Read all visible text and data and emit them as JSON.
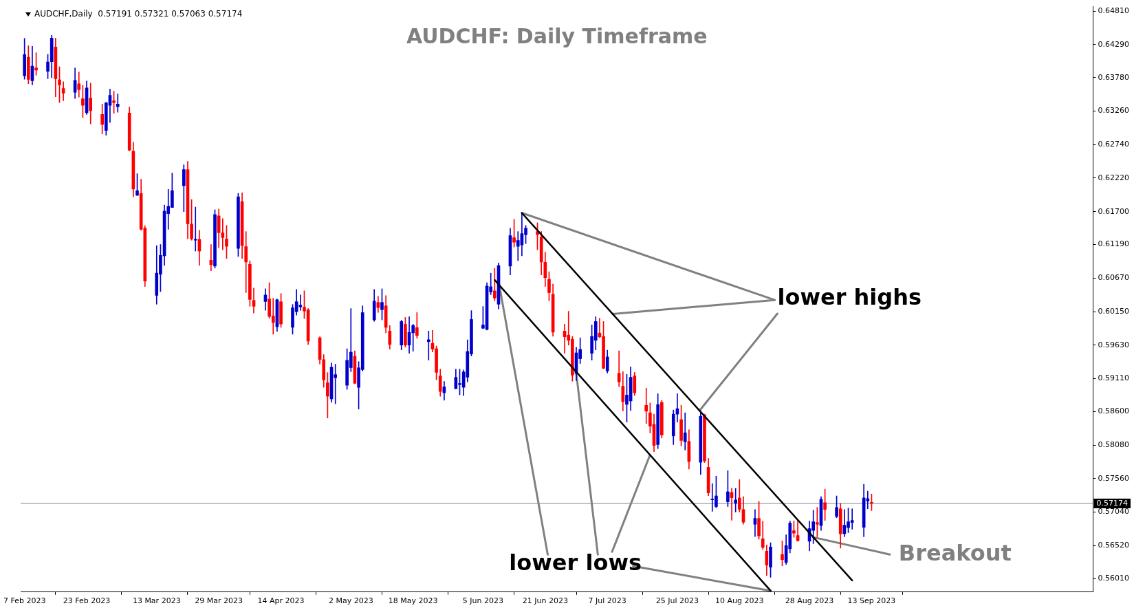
{
  "chart_data": {
    "type": "candlestick",
    "title": "AUDCHF: Daily Timeframe",
    "x": [
      "2023-02-07",
      "2023-02-08",
      "2023-02-09",
      "2023-02-10",
      "2023-02-13",
      "2023-02-14",
      "2023-02-15",
      "2023-02-16",
      "2023-02-17",
      "2023-02-20",
      "2023-02-21",
      "2023-02-22",
      "2023-02-23",
      "2023-02-24",
      "2023-02-27",
      "2023-02-28",
      "2023-03-01",
      "2023-03-02",
      "2023-03-03",
      "2023-03-06",
      "2023-03-07",
      "2023-03-08",
      "2023-03-09",
      "2023-03-10",
      "2023-03-13",
      "2023-03-14",
      "2023-03-15",
      "2023-03-16",
      "2023-03-17",
      "2023-03-20",
      "2023-03-21",
      "2023-03-22",
      "2023-03-23",
      "2023-03-24",
      "2023-03-27",
      "2023-03-28",
      "2023-03-29",
      "2023-03-30",
      "2023-03-31",
      "2023-04-03",
      "2023-04-04",
      "2023-04-05",
      "2023-04-06",
      "2023-04-07",
      "2023-04-10",
      "2023-04-11",
      "2023-04-12",
      "2023-04-13",
      "2023-04-14",
      "2023-04-17",
      "2023-04-18",
      "2023-04-19",
      "2023-04-20",
      "2023-04-21",
      "2023-04-24",
      "2023-04-25",
      "2023-04-26",
      "2023-04-27",
      "2023-04-28",
      "2023-05-01",
      "2023-05-02",
      "2023-05-03",
      "2023-05-04",
      "2023-05-05",
      "2023-05-08",
      "2023-05-09",
      "2023-05-10",
      "2023-05-11",
      "2023-05-12",
      "2023-05-15",
      "2023-05-16",
      "2023-05-17",
      "2023-05-18",
      "2023-05-19",
      "2023-05-22",
      "2023-05-23",
      "2023-05-24",
      "2023-05-25",
      "2023-05-26",
      "2023-05-29",
      "2023-05-30",
      "2023-05-31",
      "2023-06-01",
      "2023-06-02",
      "2023-06-05",
      "2023-06-06",
      "2023-06-07",
      "2023-06-08",
      "2023-06-09",
      "2023-06-12",
      "2023-06-13",
      "2023-06-14",
      "2023-06-15",
      "2023-06-16",
      "2023-06-19",
      "2023-06-20",
      "2023-06-21",
      "2023-06-22",
      "2023-06-23",
      "2023-06-26",
      "2023-06-27",
      "2023-06-28",
      "2023-06-29",
      "2023-06-30",
      "2023-07-03",
      "2023-07-04",
      "2023-07-05",
      "2023-07-06",
      "2023-07-07",
      "2023-07-10",
      "2023-07-11",
      "2023-07-12",
      "2023-07-13",
      "2023-07-14",
      "2023-07-17",
      "2023-07-18",
      "2023-07-19",
      "2023-07-20",
      "2023-07-21",
      "2023-07-24",
      "2023-07-25",
      "2023-07-26",
      "2023-07-27",
      "2023-07-28",
      "2023-07-31",
      "2023-08-01",
      "2023-08-02",
      "2023-08-03",
      "2023-08-04",
      "2023-08-07",
      "2023-08-08",
      "2023-08-09",
      "2023-08-10",
      "2023-08-11",
      "2023-08-14",
      "2023-08-15",
      "2023-08-16",
      "2023-08-17",
      "2023-08-18",
      "2023-08-21",
      "2023-08-22",
      "2023-08-23",
      "2023-08-24",
      "2023-08-25",
      "2023-08-28",
      "2023-08-29",
      "2023-08-30",
      "2023-08-31",
      "2023-09-01",
      "2023-09-04",
      "2023-09-05",
      "2023-09-06",
      "2023-09-07",
      "2023-09-08",
      "2023-09-11",
      "2023-09-12",
      "2023-09-13"
    ],
    "ohlc": [
      [
        0.63807,
        0.64388,
        0.63754,
        0.64135
      ],
      [
        0.64096,
        0.64272,
        0.63684,
        0.63751
      ],
      [
        0.6373,
        0.64265,
        0.63666,
        0.63958
      ],
      [
        0.63927,
        0.64166,
        0.63814,
        0.63895
      ],
      [
        0.63877,
        0.64138,
        0.63761,
        0.64022
      ],
      [
        0.64025,
        0.64434,
        0.63779,
        0.64392
      ],
      [
        0.64254,
        0.64392,
        0.63483,
        0.63761
      ],
      [
        0.63744,
        0.63948,
        0.63391,
        0.63666
      ],
      [
        0.6361,
        0.63715,
        0.6342,
        0.63539
      ],
      [
        0.6355,
        0.63927,
        0.63455,
        0.63737
      ],
      [
        0.63684,
        0.63863,
        0.63476,
        0.63592
      ],
      [
        0.63451,
        0.63659,
        0.63159,
        0.63349
      ],
      [
        0.63233,
        0.63726,
        0.63208,
        0.6362
      ],
      [
        0.63462,
        0.63694,
        0.6306,
        0.63265
      ],
      [
        0.63208,
        0.63367,
        0.62905,
        0.63053
      ],
      [
        0.62958,
        0.63398,
        0.62884,
        0.63388
      ],
      [
        0.63349,
        0.63599,
        0.63081,
        0.63504
      ],
      [
        0.6342,
        0.63568,
        0.63222,
        0.63391
      ],
      [
        0.63328,
        0.63525,
        0.63243,
        0.63367
      ],
      [
        0.63229,
        0.63324,
        0.62645,
        0.62652
      ],
      [
        0.62638,
        0.62775,
        0.61933,
        0.6205
      ],
      [
        0.61954,
        0.62289,
        0.61947,
        0.62025
      ],
      [
        0.61983,
        0.62204,
        0.61412,
        0.61426
      ],
      [
        0.61444,
        0.61482,
        0.60539,
        0.60623
      ],
      [
        0.60401,
        0.61173,
        0.60264,
        0.60746
      ],
      [
        0.60729,
        0.6119,
        0.60461,
        0.61021
      ],
      [
        0.61014,
        0.61803,
        0.60866,
        0.61708
      ],
      [
        0.61669,
        0.62046,
        0.61426,
        0.61782
      ],
      [
        0.61764,
        0.623,
        0.61764,
        0.62025
      ],
      [
        0.62102,
        0.62426,
        0.61701,
        0.62352
      ],
      [
        0.62352,
        0.62479,
        0.61278,
        0.61511
      ],
      [
        0.61507,
        0.61888,
        0.61257,
        0.61278
      ],
      [
        0.61257,
        0.61771,
        0.61088,
        0.61271
      ],
      [
        0.61271,
        0.61412,
        0.60866,
        0.61088
      ],
      [
        0.60947,
        0.6119,
        0.60782,
        0.60877
      ],
      [
        0.60856,
        0.61729,
        0.60824,
        0.61655
      ],
      [
        0.61634,
        0.6174,
        0.61141,
        0.61373
      ],
      [
        0.6137,
        0.61592,
        0.61109,
        0.61299
      ],
      [
        0.61275,
        0.61486,
        0.60972,
        0.61162
      ],
      [
        0.6113,
        0.61983,
        0.61004,
        0.6193
      ],
      [
        0.61856,
        0.61993,
        0.60972,
        0.61173
      ],
      [
        0.61158,
        0.61391,
        0.60444,
        0.60919
      ],
      [
        0.60884,
        0.60937,
        0.60232,
        0.60338
      ],
      [
        0.60324,
        0.60514,
        0.60127,
        0.60232
      ],
      [
        0.60306,
        0.60503,
        0.60169,
        0.60408
      ],
      [
        0.60345,
        0.60598,
        0.60046,
        0.60074
      ],
      [
        0.60081,
        0.60355,
        0.59799,
        0.59979
      ],
      [
        0.59915,
        0.60345,
        0.59841,
        0.60334
      ],
      [
        0.60303,
        0.60429,
        0.59905,
        0.59957
      ],
      [
        0.59905,
        0.6026,
        0.59799,
        0.60208
      ],
      [
        0.60148,
        0.60493,
        0.60095,
        0.60303
      ],
      [
        0.60222,
        0.60408,
        0.60169,
        0.6025
      ],
      [
        0.60218,
        0.60472,
        0.60042,
        0.60158
      ],
      [
        0.60176,
        0.60197,
        0.5964,
        0.59693
      ],
      [
        0.59743,
        0.5976,
        0.59334,
        0.59408
      ],
      [
        0.59404,
        0.59482,
        0.58975,
        0.59091
      ],
      [
        0.59045,
        0.59204,
        0.58499,
        0.58837
      ],
      [
        0.58795,
        0.59352,
        0.58742,
        0.59288
      ],
      [
        0.59123,
        0.59334,
        0.58721,
        0.59172
      ],
      [
        0.59007,
        0.59574,
        0.58943,
        0.59394
      ],
      [
        0.59281,
        0.60197,
        0.59218,
        0.59521
      ],
      [
        0.59457,
        0.59542,
        0.59028,
        0.59038
      ],
      [
        0.58975,
        0.59373,
        0.58637,
        0.59278
      ],
      [
        0.5925,
        0.60239,
        0.59228,
        0.60134
      ],
      [
        0.60021,
        0.60493,
        0.59999,
        0.60313
      ],
      [
        0.60292,
        0.60387,
        0.60137,
        0.60211
      ],
      [
        0.60179,
        0.60503,
        0.60021,
        0.60292
      ],
      [
        0.60239,
        0.60398,
        0.5982,
        0.59905
      ],
      [
        0.59848,
        0.59933,
        0.59567,
        0.5964
      ],
      [
        0.5963,
        0.60017,
        0.59556,
        0.59996
      ],
      [
        0.59954,
        0.6006,
        0.59598,
        0.5963
      ],
      [
        0.5963,
        0.6007,
        0.59503,
        0.59827
      ],
      [
        0.5982,
        0.59954,
        0.59535,
        0.59933
      ],
      [
        0.59901,
        0.60134,
        0.59736,
        0.59778
      ],
      [
        0.59683,
        0.59848,
        0.59397,
        0.59714
      ],
      [
        0.59658,
        0.59859,
        0.59524,
        0.59567
      ],
      [
        0.59574,
        0.59616,
        0.59091,
        0.59207
      ],
      [
        0.59151,
        0.59257,
        0.58837,
        0.58911
      ],
      [
        0.5889,
        0.59066,
        0.58774,
        0.58982
      ],
      [
        0.58954,
        0.59257,
        0.5895,
        0.5913
      ],
      [
        0.59017,
        0.59257,
        0.58859,
        0.59035
      ],
      [
        0.58975,
        0.59246,
        0.58848,
        0.59214
      ],
      [
        0.59133,
        0.59711,
        0.59059,
        0.59531
      ],
      [
        0.59493,
        0.60165,
        0.59461,
        0.60028
      ],
      [
        0.59891,
        0.60229,
        0.59884,
        0.59943
      ],
      [
        0.59873,
        0.60598,
        0.59862,
        0.60546
      ],
      [
        0.60454,
        0.60746,
        0.60412,
        0.60535
      ],
      [
        0.60472,
        0.6082,
        0.60317,
        0.60359
      ],
      [
        0.60264,
        0.60905,
        0.6019,
        0.60863
      ],
      [
        0.60856,
        0.61444,
        0.60718,
        0.61328
      ],
      [
        0.61296,
        0.61581,
        0.61151,
        0.61225
      ],
      [
        0.61162,
        0.61391,
        0.6094,
        0.61254
      ],
      [
        0.61183,
        0.61676,
        0.61014,
        0.61359
      ],
      [
        0.61342,
        0.61486,
        0.61204,
        0.61444
      ],
      [
        0.61391,
        0.61528,
        0.61109,
        0.61342
      ],
      [
        0.61306,
        0.61391,
        0.60718,
        0.60919
      ],
      [
        0.60915,
        0.61074,
        0.60539,
        0.60676
      ],
      [
        0.60651,
        0.60768,
        0.60317,
        0.60443
      ],
      [
        0.60419,
        0.60577,
        0.59767,
        0.59831
      ],
      [
        0.59848,
        0.59954,
        0.59503,
        0.59757
      ],
      [
        0.59785,
        0.60155,
        0.5963,
        0.59704
      ],
      [
        0.59721,
        0.59764,
        0.5907,
        0.59165
      ],
      [
        0.5919,
        0.59595,
        0.5908,
        0.5951
      ],
      [
        0.59419,
        0.59743,
        0.59345,
        0.59563
      ],
      [
        0.59503,
        0.59943,
        0.59397,
        0.59764
      ],
      [
        0.59704,
        0.6007,
        0.59556,
        0.59996
      ],
      [
        0.59817,
        0.60049,
        0.59746,
        0.59757
      ],
      [
        0.59764,
        0.59996,
        0.5926,
        0.59271
      ],
      [
        0.59228,
        0.59552,
        0.59197,
        0.59447
      ],
      [
        0.59193,
        0.59542,
        0.58985,
        0.59059
      ],
      [
        0.58992,
        0.59218,
        0.58609,
        0.58753
      ],
      [
        0.58711,
        0.59176,
        0.58436,
        0.58855
      ],
      [
        0.58764,
        0.59292,
        0.58616,
        0.5913
      ],
      [
        0.59151,
        0.59207,
        0.58848,
        0.5889
      ],
      [
        0.58697,
        0.58964,
        0.58415,
        0.58605
      ],
      [
        0.5858,
        0.58732,
        0.58267,
        0.58373
      ],
      [
        0.58401,
        0.58559,
        0.57978,
        0.58073
      ],
      [
        0.58087,
        0.58876,
        0.58024,
        0.58707
      ],
      [
        0.58742,
        0.58771,
        0.58189,
        0.58235
      ],
      [
        0.58221,
        0.58623,
        0.58087,
        0.58559
      ],
      [
        0.58559,
        0.58876,
        0.58436,
        0.58644
      ],
      [
        0.58475,
        0.58697,
        0.58066,
        0.58151
      ],
      [
        0.5813,
        0.5858,
        0.58003,
        0.5827
      ],
      [
        0.58137,
        0.58316,
        0.57707,
        0.57823
      ],
      [
        0.57813,
        0.58601,
        0.57622,
        0.58527
      ],
      [
        0.58549,
        0.58559,
        0.57809,
        0.57834
      ],
      [
        0.57735,
        0.57872,
        0.57295,
        0.57337
      ],
      [
        0.57231,
        0.57481,
        0.57052,
        0.57238
      ],
      [
        0.57126,
        0.57598,
        0.57105,
        0.57291
      ],
      [
        0.572,
        0.57682,
        0.57126,
        0.57355
      ],
      [
        0.57344,
        0.57411,
        0.56914,
        0.57263
      ],
      [
        0.57178,
        0.57407,
        0.57041,
        0.57228
      ],
      [
        0.5726,
        0.57545,
        0.57041,
        0.57083
      ],
      [
        0.5708,
        0.57281,
        0.56851,
        0.56883
      ],
      [
        0.56851,
        0.5708,
        0.56661,
        0.56943
      ],
      [
        0.56943,
        0.57207,
        0.56619,
        0.56671
      ],
      [
        0.56626,
        0.569,
        0.5646,
        0.56492
      ],
      [
        0.56435,
        0.56531,
        0.56058,
        0.56217
      ],
      [
        0.56185,
        0.56566,
        0.56027,
        0.56499
      ],
      [
        0.56383,
        0.56594,
        0.56206,
        0.56302
      ],
      [
        0.56259,
        0.56689,
        0.56228,
        0.5652
      ],
      [
        0.56471,
        0.569,
        0.56407,
        0.56869
      ],
      [
        0.56752,
        0.569,
        0.5665,
        0.56714
      ],
      [
        0.56678,
        0.569,
        0.56587,
        0.56597
      ],
      [
        0.56587,
        0.569,
        0.56439,
        0.56784
      ],
      [
        0.56756,
        0.57069,
        0.56552,
        0.5689
      ],
      [
        0.56879,
        0.57112,
        0.56657,
        0.56851
      ],
      [
        0.5683,
        0.57281,
        0.56756,
        0.57238
      ],
      [
        0.57186,
        0.57397,
        0.56911,
        0.5708
      ],
      [
        0.56974,
        0.57291,
        0.56953,
        0.57112
      ],
      [
        0.57091,
        0.57175,
        0.56481,
        0.56703
      ],
      [
        0.56703,
        0.5708,
        0.56657,
        0.56837
      ],
      [
        0.56798,
        0.57101,
        0.56721,
        0.5689
      ],
      [
        0.56879,
        0.57091,
        0.56774,
        0.56911
      ],
      [
        0.56805,
        0.57471,
        0.56657,
        0.5726
      ],
      [
        0.5721,
        0.57365,
        0.57091,
        0.57249
      ],
      [
        0.57191,
        0.57321,
        0.57063,
        0.57174
      ]
    ],
    "colors": [
      "#0000cc",
      "#ff0000",
      "#0000cc",
      "#ff0000",
      "#0000cc",
      "#0000cc",
      "#ff0000",
      "#ff0000",
      "#ff0000",
      "#0000cc",
      "#ff0000",
      "#ff0000",
      "#0000cc",
      "#ff0000",
      "#ff0000",
      "#0000cc",
      "#0000cc",
      "#ff0000",
      "#0000cc",
      "#ff0000",
      "#ff0000",
      "#0000cc",
      "#ff0000",
      "#ff0000",
      "#0000cc",
      "#0000cc",
      "#0000cc",
      "#0000cc",
      "#0000cc",
      "#0000cc",
      "#ff0000",
      "#ff0000",
      "#0000cc",
      "#ff0000",
      "#ff0000",
      "#0000cc",
      "#ff0000",
      "#ff0000",
      "#ff0000",
      "#0000cc",
      "#ff0000",
      "#ff0000",
      "#ff0000",
      "#ff0000",
      "#0000cc",
      "#ff0000",
      "#ff0000",
      "#0000cc",
      "#ff0000",
      "#0000cc",
      "#0000cc",
      "#0000cc",
      "#ff0000",
      "#ff0000",
      "#ff0000",
      "#ff0000",
      "#ff0000",
      "#0000cc",
      "#0000cc",
      "#0000cc",
      "#0000cc",
      "#ff0000",
      "#0000cc",
      "#0000cc",
      "#0000cc",
      "#ff0000",
      "#0000cc",
      "#ff0000",
      "#ff0000",
      "#0000cc",
      "#ff0000",
      "#0000cc",
      "#0000cc",
      "#ff0000",
      "#0000cc",
      "#ff0000",
      "#ff0000",
      "#ff0000",
      "#0000cc",
      "#0000cc",
      "#0000cc",
      "#0000cc",
      "#0000cc",
      "#0000cc",
      "#0000cc",
      "#0000cc",
      "#0000cc",
      "#ff0000",
      "#0000cc",
      "#0000cc",
      "#ff0000",
      "#0000cc",
      "#0000cc",
      "#0000cc",
      "#ff0000",
      "#ff0000",
      "#ff0000",
      "#ff0000",
      "#ff0000",
      "#ff0000",
      "#ff0000",
      "#ff0000",
      "#0000cc",
      "#0000cc",
      "#0000cc",
      "#0000cc",
      "#ff0000",
      "#ff0000",
      "#0000cc",
      "#ff0000",
      "#ff0000",
      "#0000cc",
      "#0000cc",
      "#ff0000",
      "#ff0000",
      "#ff0000",
      "#ff0000",
      "#0000cc",
      "#ff0000",
      "#0000cc",
      "#0000cc",
      "#ff0000",
      "#0000cc",
      "#ff0000",
      "#0000cc",
      "#ff0000",
      "#ff0000",
      "#0000cc",
      "#0000cc",
      "#0000cc",
      "#ff0000",
      "#0000cc",
      "#ff0000",
      "#ff0000",
      "#0000cc",
      "#ff0000",
      "#ff0000",
      "#ff0000",
      "#0000cc",
      "#ff0000",
      "#0000cc",
      "#0000cc",
      "#ff0000",
      "#ff0000",
      "#0000cc",
      "#0000cc",
      "#ff0000",
      "#0000cc",
      "#ff0000",
      "#0000cc",
      "#ff0000",
      "#0000cc",
      "#0000cc",
      "#0000cc",
      "#0000cc",
      "#0000cc",
      "#ff0000"
    ],
    "xlim": [
      "2023-02-06",
      "2023-11-09"
    ],
    "xticks": [
      {
        "value": "2023-02-07",
        "label": "7 Feb 2023"
      },
      {
        "value": "2023-02-23",
        "label": "23 Feb 2023"
      },
      {
        "value": "2023-03-13",
        "label": "13 Mar 2023"
      },
      {
        "value": "2023-03-29",
        "label": "29 Mar 2023"
      },
      {
        "value": "2023-04-14",
        "label": "14 Apr 2023"
      },
      {
        "value": "2023-05-02",
        "label": "2 May 2023"
      },
      {
        "value": "2023-05-18",
        "label": "18 May 2023"
      },
      {
        "value": "2023-06-05",
        "label": "5 Jun 2023"
      },
      {
        "value": "2023-06-21",
        "label": "21 Jun 2023"
      },
      {
        "value": "2023-07-07",
        "label": "7 Jul 2023"
      },
      {
        "value": "2023-07-25",
        "label": "25 Jul 2023"
      },
      {
        "value": "2023-08-10",
        "label": "10 Aug 2023"
      },
      {
        "value": "2023-08-28",
        "label": "28 Aug 2023"
      },
      {
        "value": "2023-09-13",
        "label": "13 Sep 2023"
      }
    ],
    "ylim": [
      0.558,
      0.6488
    ],
    "yticks": [
      {
        "value": 0.5601,
        "label": "0.56010"
      },
      {
        "value": 0.5652,
        "label": "0.56520"
      },
      {
        "value": 0.5704,
        "label": "0.57040"
      },
      {
        "value": 0.5756,
        "label": "0.57560"
      },
      {
        "value": 0.5808,
        "label": "0.58080"
      },
      {
        "value": 0.586,
        "label": "0.58600"
      },
      {
        "value": 0.5911,
        "label": "0.59110"
      },
      {
        "value": 0.5963,
        "label": "0.59630"
      },
      {
        "value": 0.6015,
        "label": "0.60150"
      },
      {
        "value": 0.6067,
        "label": "0.60670"
      },
      {
        "value": 0.6119,
        "label": "0.61190"
      },
      {
        "value": 0.617,
        "label": "0.61700"
      },
      {
        "value": 0.6222,
        "label": "0.62220"
      },
      {
        "value": 0.6274,
        "label": "0.62740"
      },
      {
        "value": 0.6326,
        "label": "0.63260"
      },
      {
        "value": 0.6378,
        "label": "0.63780"
      },
      {
        "value": 0.6429,
        "label": "0.64290"
      },
      {
        "value": 0.6481,
        "label": "0.64810"
      }
    ],
    "series": [
      {
        "type": "line",
        "x": [
          "2023-06-15",
          "2023-09-08"
        ],
        "values": [
          0.6168,
          0.5598
        ],
        "color": "#000000"
      },
      {
        "type": "line",
        "x": [
          "2023-06-08",
          "2023-08-18"
        ],
        "values": [
          0.6064,
          0.5582
        ],
        "color": "#000000"
      }
    ],
    "ref_lines": [
      {
        "axis": "y",
        "value": 0.57174,
        "label": "0.57174",
        "color": "#778899"
      }
    ],
    "annotations": [
      "AUDCHF,Daily  0.57191 0.57321 0.57063 0.57174",
      {
        "text": "lower highs",
        "x": "2023-06-15",
        "y": 0.6168
      },
      {
        "text": "lower lows",
        "x": "2023-06-09",
        "y": 0.6062
      },
      {
        "text": "Breakout",
        "x": "2023-08-29",
        "y": 0.5665
      }
    ],
    "grid": false,
    "legend": false
  }
}
